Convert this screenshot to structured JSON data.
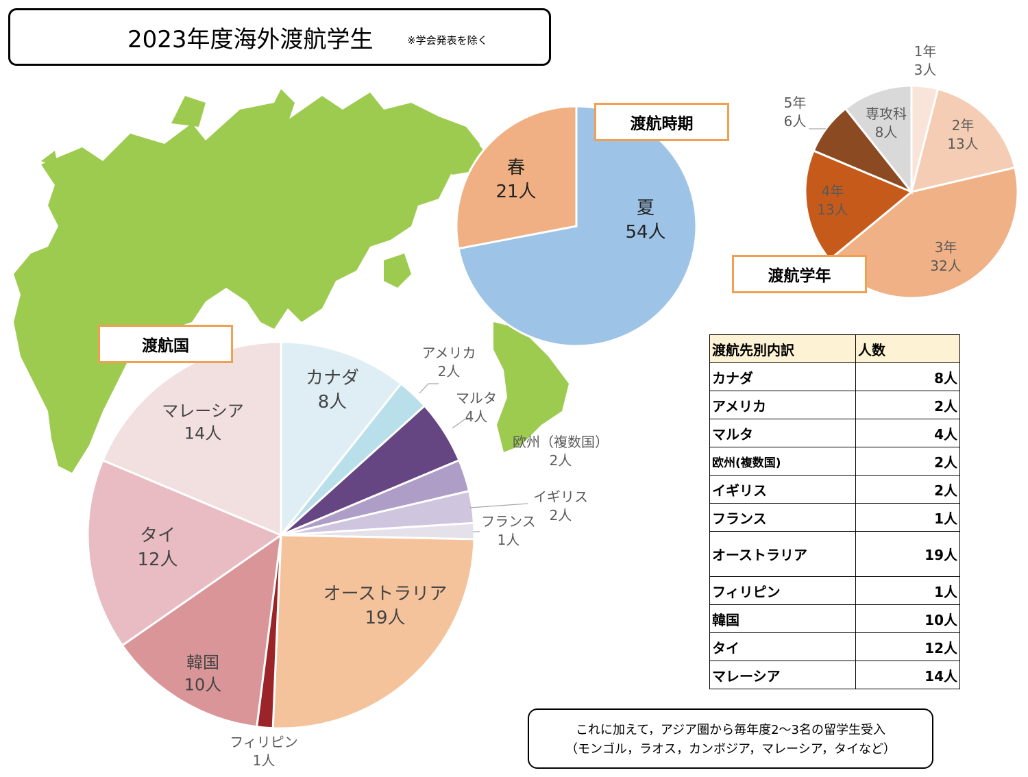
{
  "title": {
    "main": "2023年度海外渡航学生",
    "sub": "※学会発表を除く"
  },
  "colors": {
    "map": "#9dcb50",
    "tag_border": "#f0a050"
  },
  "chart_data": [
    {
      "type": "pie",
      "title": "渡航時期",
      "slices": [
        {
          "name": "夏",
          "value": 54,
          "label": "54人",
          "color": "#9dc3e6"
        },
        {
          "name": "春",
          "value": 21,
          "label": "21人",
          "color": "#f1b083"
        }
      ]
    },
    {
      "type": "pie",
      "title": "渡航学年",
      "slices": [
        {
          "name": "1年",
          "value": 3,
          "label": "3人",
          "color": "#f8e4d9"
        },
        {
          "name": "2年",
          "value": 13,
          "label": "13人",
          "color": "#f4cdb4"
        },
        {
          "name": "3年",
          "value": 32,
          "label": "32人",
          "color": "#efb185"
        },
        {
          "name": "4年",
          "value": 13,
          "label": "13人",
          "color": "#c55a1b"
        },
        {
          "name": "5年",
          "value": 6,
          "label": "6人",
          "color": "#8b4a22"
        },
        {
          "name": "専攻科",
          "value": 8,
          "label": "8人",
          "color": "#d9d9d9"
        }
      ]
    },
    {
      "type": "pie",
      "title": "渡航国",
      "slices": [
        {
          "name": "カナダ",
          "value": 8,
          "label": "8人",
          "color": "#deeef4"
        },
        {
          "name": "アメリカ",
          "value": 2,
          "label": "2人",
          "color": "#b9dfea"
        },
        {
          "name": "マルタ",
          "value": 4,
          "label": "4人",
          "color": "#654582"
        },
        {
          "name": "欧州（複数国）",
          "value": 2,
          "label": "2人",
          "color": "#ad9dc7"
        },
        {
          "name": "イギリス",
          "value": 2,
          "label": "2人",
          "color": "#cfc5df"
        },
        {
          "name": "フランス",
          "value": 1,
          "label": "1人",
          "color": "#e4e1ea"
        },
        {
          "name": "オーストラリア",
          "value": 19,
          "label": "19人",
          "color": "#f5c39b"
        },
        {
          "name": "フィリピン",
          "value": 1,
          "label": "1人",
          "color": "#9b2428"
        },
        {
          "name": "韓国",
          "value": 10,
          "label": "10人",
          "color": "#d99598"
        },
        {
          "name": "タイ",
          "value": 12,
          "label": "12人",
          "color": "#e8bcc2"
        },
        {
          "name": "マレーシア",
          "value": 14,
          "label": "14人",
          "color": "#f2dfe0"
        }
      ]
    }
  ],
  "table": {
    "headers": [
      "渡航先別内訳",
      "人数"
    ],
    "rows": [
      [
        "カナダ",
        "8人"
      ],
      [
        "アメリカ",
        "2人"
      ],
      [
        "マルタ",
        "4人"
      ],
      [
        "欧州(複数国)",
        "2人"
      ],
      [
        "イギリス",
        "2人"
      ],
      [
        "フランス",
        "1人"
      ],
      [
        "オーストラリア",
        "19人"
      ],
      [
        "フィリピン",
        "1人"
      ],
      [
        "韓国",
        "10人"
      ],
      [
        "タイ",
        "12人"
      ],
      [
        "マレーシア",
        "14人"
      ]
    ]
  },
  "note": {
    "line1": "これに加えて，アジア圏から毎年度2〜3名の留学生受入",
    "line2": "（モンゴル，ラオス，カンボジア，マレーシア，タイなど）"
  }
}
